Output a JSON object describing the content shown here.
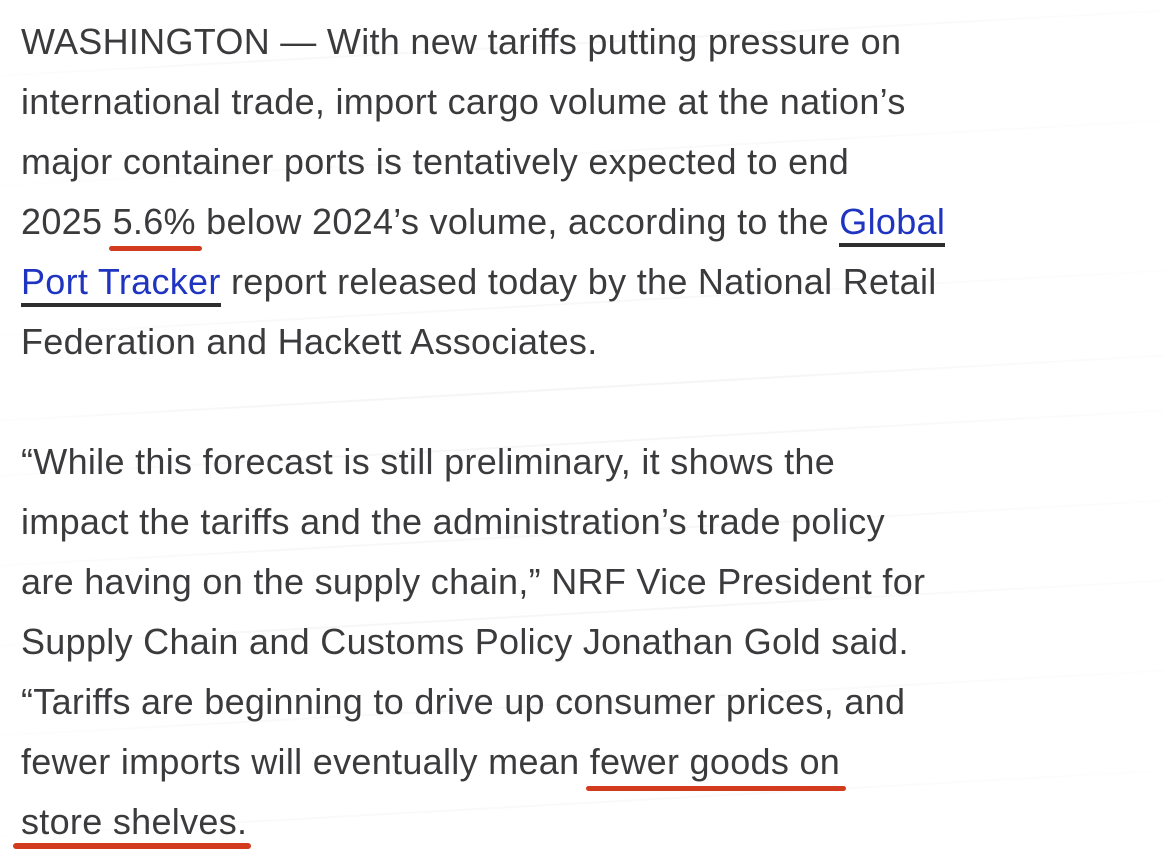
{
  "colors": {
    "text_color": "#3b3b3e",
    "annotation_red": "#d23b1e",
    "link_blue": "#1f35c1",
    "link_underline": "#2e2e2e",
    "page_bg": "#ffffff"
  },
  "article": {
    "p1": {
      "l1": "WASHINGTON — With new tariffs putting pressure on",
      "l2": "international trade, import cargo volume at the nation’s",
      "l3": "major container ports is tentatively expected to end",
      "l4_pre": "2025 ",
      "l4_stat": "5.6%",
      "l4_mid": " below 2024’s volume, according to the ",
      "l4_link": "Global",
      "l5_link": "Port Tracker",
      "l5_rest": " report released today by the National Retail",
      "l6": "Federation and Hackett Associates."
    },
    "p2": {
      "l1": "“While this forecast is still preliminary, it shows the",
      "l2": "impact the tariffs and the administration’s trade policy",
      "l3": "are having on the supply chain,” NRF Vice President for",
      "l4": "Supply Chain and Customs Policy Jonathan Gold said.",
      "l5": "“Tariffs are beginning to drive up consumer prices, and",
      "l6_pre": "fewer imports will eventually mean ",
      "l6_hl": "fewer goods on",
      "l7_hl": "store shelves."
    }
  }
}
